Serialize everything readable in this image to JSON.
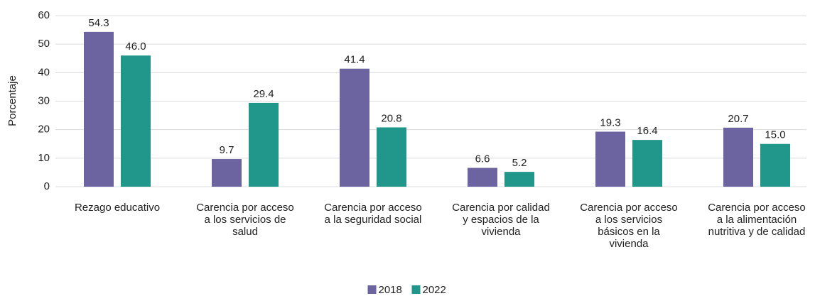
{
  "chart_data": {
    "type": "bar",
    "y_label": "Porcentaje",
    "categories": [
      "Rezago educativo",
      "Carencia por acceso a los servicios de salud",
      "Carencia por acceso a la seguridad social",
      "Carencia por calidad y espacios de la vivienda",
      "Carencia por acceso a los servicios básicos en la vivienda",
      "Carencia por acceso a la alimentación nutritiva y de calidad"
    ],
    "series": [
      {
        "name": "2018",
        "color": "#6b64a0",
        "values": [
          54.3,
          9.7,
          41.4,
          6.6,
          19.3,
          20.7
        ],
        "value_labels": [
          "54.3",
          "9.7",
          "41.4",
          "6.6",
          "19.3",
          "20.7"
        ]
      },
      {
        "name": "2022",
        "color": "#21968a",
        "values": [
          46.0,
          29.4,
          20.8,
          5.2,
          16.4,
          15.0
        ],
        "value_labels": [
          "46.0",
          "29.4",
          "20.8",
          "5.2",
          "16.4",
          "15.0"
        ]
      }
    ],
    "ylim": [
      0,
      60
    ],
    "yticks": [
      0,
      10,
      20,
      30,
      40,
      50,
      60
    ],
    "grid": true,
    "legend": "bottom"
  }
}
